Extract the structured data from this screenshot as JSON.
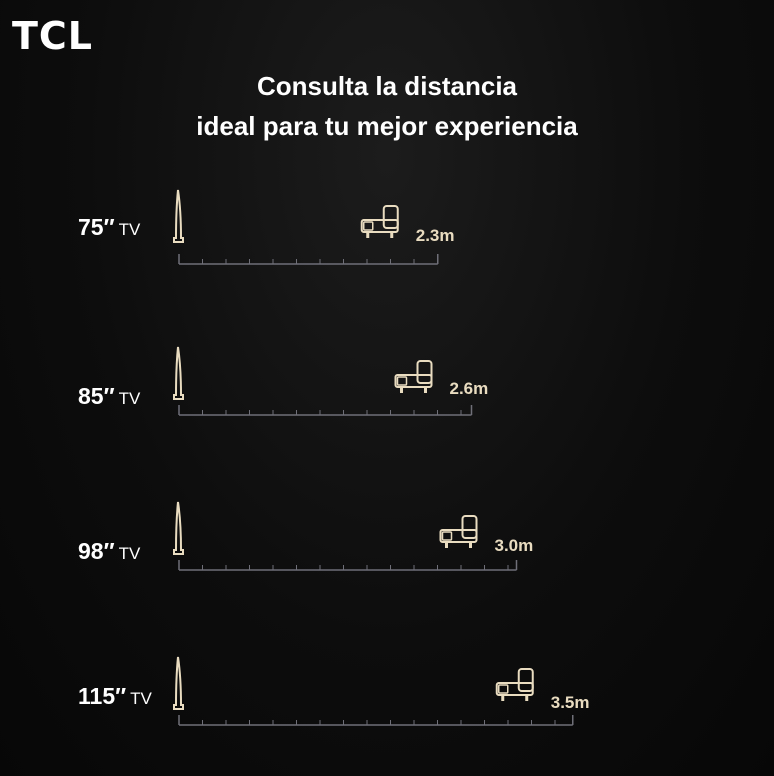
{
  "brand": {
    "logo": "TCL"
  },
  "header": {
    "title_line1": "Consulta la distancia",
    "title_line2": "ideal para tu mejor experiencia"
  },
  "colors": {
    "accent": "#e9dcc0",
    "ruler": "#6f6f78",
    "background": "#0d0d0d"
  },
  "icons": {
    "tv": "tv-stand-icon",
    "sofa": "armchair-icon"
  },
  "rows": [
    {
      "size": "75″",
      "unit": "TV",
      "distance": "2.3m",
      "distance_m": 2.3
    },
    {
      "size": "85″",
      "unit": "TV",
      "distance": "2.6m",
      "distance_m": 2.6
    },
    {
      "size": "98″",
      "unit": "TV",
      "distance": "3.0m",
      "distance_m": 3.0
    },
    {
      "size": "115″",
      "unit": "TV",
      "distance": "3.5m",
      "distance_m": 3.5
    }
  ]
}
